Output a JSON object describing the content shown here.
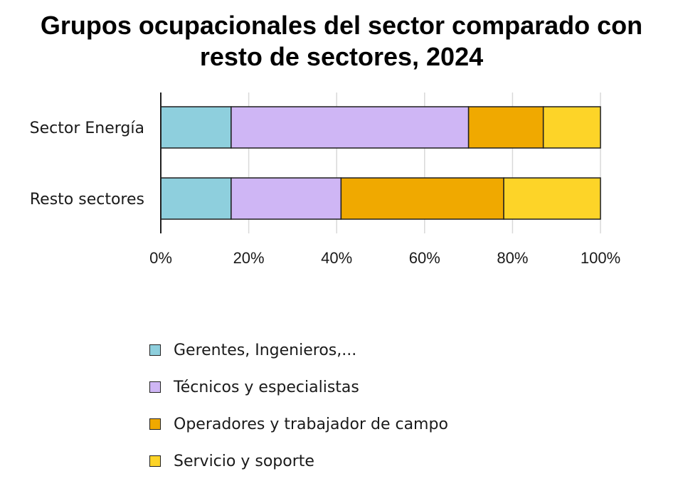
{
  "chart_data": {
    "type": "bar",
    "orientation": "horizontal",
    "stacked": true,
    "title": [
      "Grupos ocupacionales del sector comparado con",
      "resto de sectores, 2024"
    ],
    "categories": [
      "Sector Energía",
      "Resto sectores"
    ],
    "series": [
      {
        "name": "Gerentes, Ingenieros,...",
        "values": [
          16,
          16
        ],
        "color": "#8ecfdd"
      },
      {
        "name": "Técnicos y especialistas",
        "values": [
          54,
          25
        ],
        "color": "#cfb6f5"
      },
      {
        "name": "Operadores y trabajador de campo",
        "values": [
          17,
          37
        ],
        "color": "#f0a900"
      },
      {
        "name": "Servicio y soporte",
        "values": [
          13,
          22
        ],
        "color": "#fdd428"
      }
    ],
    "xlim": [
      0,
      100
    ],
    "xticks": [
      "0%",
      "20%",
      "40%",
      "60%",
      "80%",
      "100%"
    ],
    "xtick_values": [
      0,
      20,
      40,
      60,
      80,
      100
    ],
    "grid": true,
    "legend_position": "bottom"
  }
}
